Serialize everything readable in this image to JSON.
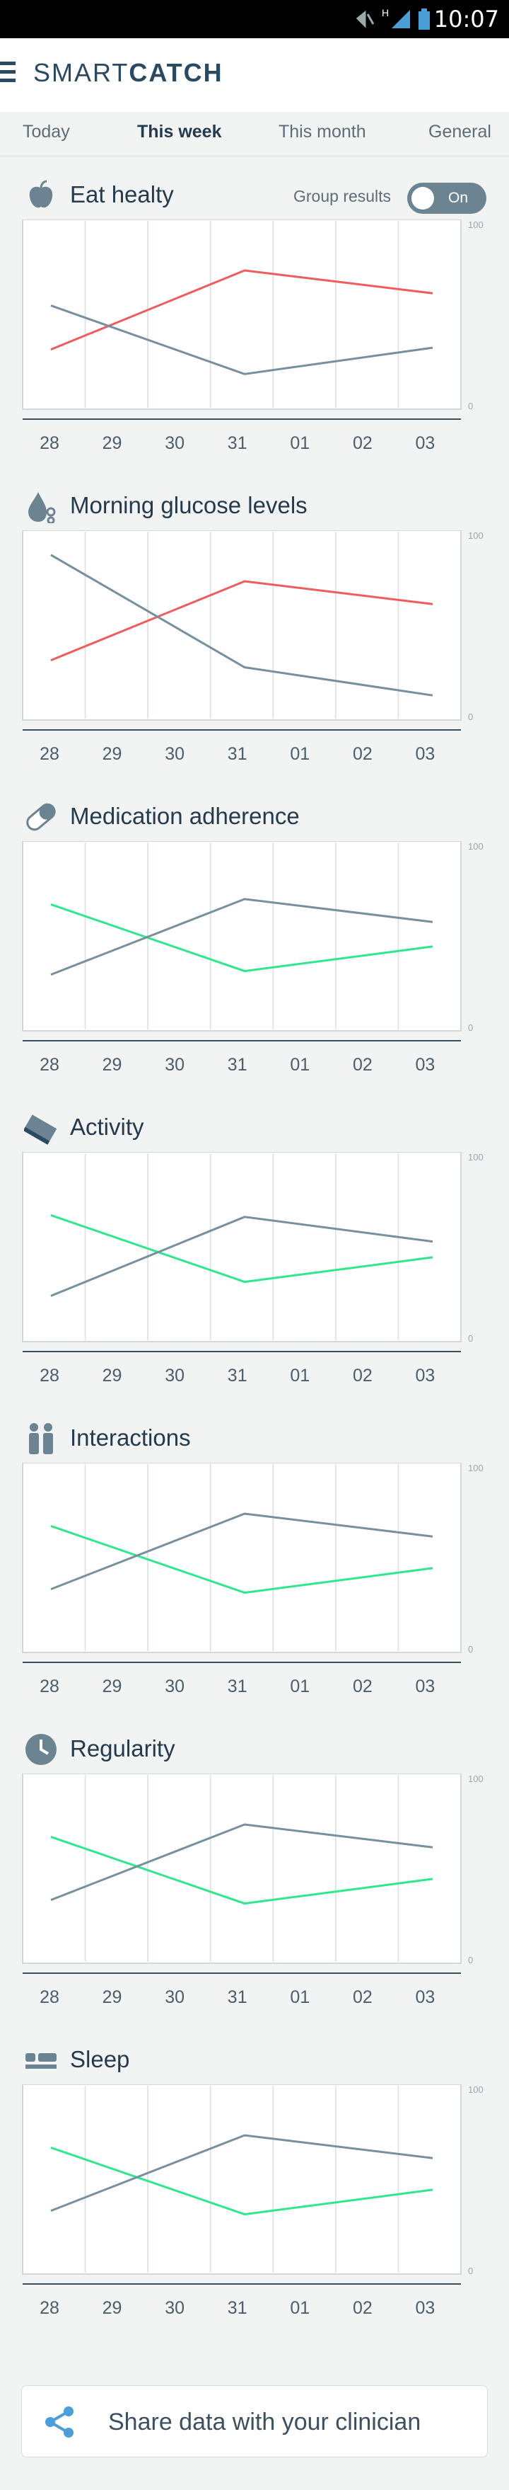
{
  "status_bar": {
    "time": "10:07",
    "signal_label": "H"
  },
  "app": {
    "brand_light": "SMART",
    "brand_bold": "CATCH"
  },
  "tabs": [
    "Today",
    "This week",
    "This month",
    "General"
  ],
  "active_tab": 1,
  "group_results": {
    "label": "Group results",
    "state": "On"
  },
  "chart_data": [
    {
      "type": "line",
      "title": "Eat healty",
      "icon": "apple-icon",
      "categories": [
        "28",
        "29",
        "30",
        "31",
        "01",
        "02",
        "03"
      ],
      "ylim": [
        0,
        100
      ],
      "yticks": [
        "100",
        "0"
      ],
      "series": [
        {
          "color": "#f05c5c",
          "values": [
            30,
            null,
            null,
            75,
            null,
            null,
            62
          ]
        },
        {
          "color": "#76909d",
          "values": [
            55,
            null,
            null,
            16,
            null,
            null,
            31
          ]
        }
      ]
    },
    {
      "type": "line",
      "title": "Morning glucose levels",
      "icon": "drop-icon",
      "categories": [
        "28",
        "29",
        "30",
        "31",
        "01",
        "02",
        "03"
      ],
      "ylim": [
        0,
        100
      ],
      "yticks": [
        "100",
        "0"
      ],
      "series": [
        {
          "color": "#f05c5c",
          "values": [
            30,
            null,
            null,
            75,
            null,
            null,
            62
          ]
        },
        {
          "color": "#76909d",
          "values": [
            90,
            null,
            null,
            26,
            null,
            null,
            10
          ]
        }
      ]
    },
    {
      "type": "line",
      "title": "Medication adherence",
      "icon": "pill-icon",
      "categories": [
        "28",
        "29",
        "30",
        "31",
        "01",
        "02",
        "03"
      ],
      "ylim": [
        0,
        100
      ],
      "yticks": [
        "100",
        "0"
      ],
      "series": [
        {
          "color": "#2ee88c",
          "values": [
            68,
            null,
            null,
            30,
            null,
            null,
            44
          ]
        },
        {
          "color": "#76909d",
          "values": [
            28,
            null,
            null,
            71,
            null,
            null,
            58
          ]
        }
      ]
    },
    {
      "type": "line",
      "title": "Activity",
      "icon": "shoe-icon",
      "categories": [
        "28",
        "29",
        "30",
        "31",
        "01",
        "02",
        "03"
      ],
      "ylim": [
        0,
        100
      ],
      "yticks": [
        "100",
        "0"
      ],
      "series": [
        {
          "color": "#2ee88c",
          "values": [
            68,
            null,
            null,
            30,
            null,
            null,
            44
          ]
        },
        {
          "color": "#76909d",
          "values": [
            22,
            null,
            null,
            67,
            null,
            null,
            53
          ]
        }
      ]
    },
    {
      "type": "line",
      "title": "Interactions",
      "icon": "people-icon",
      "categories": [
        "28",
        "29",
        "30",
        "31",
        "01",
        "02",
        "03"
      ],
      "ylim": [
        0,
        100
      ],
      "yticks": [
        "100",
        "0"
      ],
      "series": [
        {
          "color": "#2ee88c",
          "values": [
            68,
            null,
            null,
            30,
            null,
            null,
            44
          ]
        },
        {
          "color": "#76909d",
          "values": [
            32,
            null,
            null,
            75,
            null,
            null,
            62
          ]
        }
      ]
    },
    {
      "type": "line",
      "title": "Regularity",
      "icon": "clock-icon",
      "categories": [
        "28",
        "29",
        "30",
        "31",
        "01",
        "02",
        "03"
      ],
      "ylim": [
        0,
        100
      ],
      "yticks": [
        "100",
        "0"
      ],
      "series": [
        {
          "color": "#2ee88c",
          "values": [
            68,
            null,
            null,
            30,
            null,
            null,
            44
          ]
        },
        {
          "color": "#76909d",
          "values": [
            32,
            null,
            null,
            75,
            null,
            null,
            62
          ]
        }
      ]
    },
    {
      "type": "line",
      "title": "Sleep",
      "icon": "bed-icon",
      "categories": [
        "28",
        "29",
        "30",
        "31",
        "01",
        "02",
        "03"
      ],
      "ylim": [
        0,
        100
      ],
      "yticks": [
        "100",
        "0"
      ],
      "series": [
        {
          "color": "#2ee88c",
          "values": [
            68,
            null,
            null,
            30,
            null,
            null,
            44
          ]
        },
        {
          "color": "#76909d",
          "values": [
            32,
            null,
            null,
            75,
            null,
            null,
            62
          ]
        }
      ]
    }
  ],
  "share": {
    "label": "Share data with your clinician",
    "icon": "share-icon"
  }
}
